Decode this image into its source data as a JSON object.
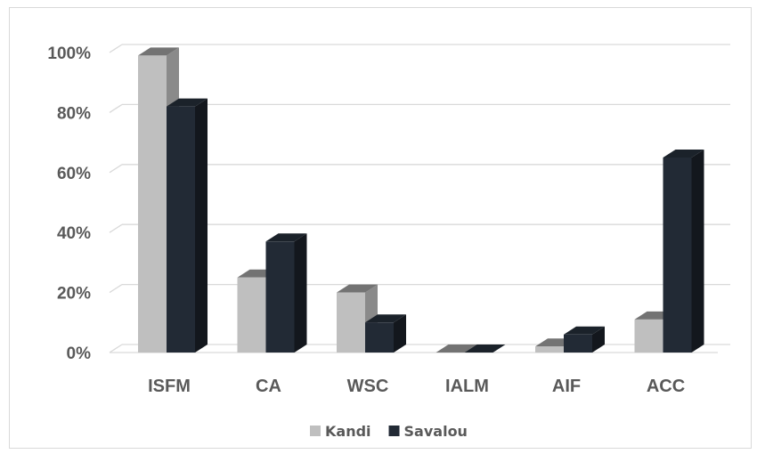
{
  "chart_data": {
    "type": "bar",
    "style": "3d-clustered-column",
    "categories": [
      "ISFM",
      "CA",
      "WSC",
      "IALM",
      "AIF",
      "ACC"
    ],
    "series": [
      {
        "name": "Kandi",
        "values": [
          99,
          25,
          20,
          0,
          2,
          11
        ],
        "color": "#bfbfbf"
      },
      {
        "name": "Savalou",
        "values": [
          82,
          37,
          10,
          0,
          6,
          65
        ],
        "color": "#222a35"
      }
    ],
    "ylim": [
      0,
      100
    ],
    "yticks": [
      "0%",
      "20%",
      "40%",
      "60%",
      "80%",
      "100%"
    ],
    "ytick_values": [
      0,
      20,
      40,
      60,
      80,
      100
    ],
    "grid": true,
    "legend": "bottom",
    "title": "",
    "xlabel": "",
    "ylabel": ""
  }
}
